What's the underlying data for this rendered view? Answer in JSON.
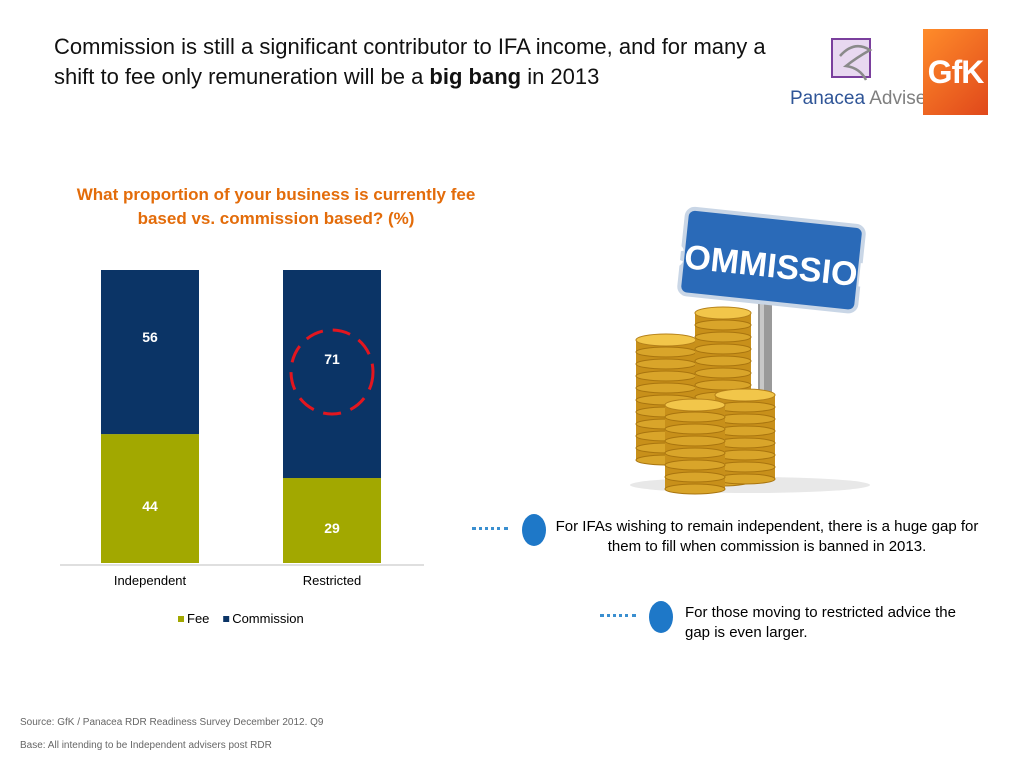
{
  "headline": {
    "before": "Commission is still a significant contributor to IFA income, and for many a shift to fee only remuneration will be a ",
    "bold": "big bang",
    "after": " in 2013"
  },
  "logos": {
    "panacea_name": "Panacea",
    "panacea_suffix": "Adviser",
    "gfk_text": "GfK"
  },
  "illustration": {
    "sign_text": "COMMISSION"
  },
  "chart_data": {
    "type": "bar",
    "stacked": true,
    "percent": true,
    "title": "What proportion of your business is currently fee based vs. commission based? (%)",
    "categories": [
      "Independent",
      "Restricted"
    ],
    "series": [
      {
        "name": "Fee",
        "values": [
          44,
          29
        ],
        "color": "#a2a800"
      },
      {
        "name": "Commission",
        "values": [
          56,
          71
        ],
        "color": "#0b3466"
      }
    ],
    "ylim": [
      0,
      100
    ],
    "legend": "bottom",
    "grid": false,
    "highlight": {
      "category": "Restricted",
      "series": "Commission",
      "color": "#e3161f",
      "style": "dashed-circle"
    }
  },
  "callouts": [
    {
      "text": "For IFAs wishing to remain independent, there is a huge gap for them to fill when commission is banned in 2013."
    },
    {
      "text": "For those moving to restricted advice the gap is even larger."
    }
  ],
  "footer": {
    "source": "Source: GfK / Panacea RDR Readiness Survey December 2012. Q9",
    "base": "Base: All intending to be Independent advisers post RDR"
  }
}
